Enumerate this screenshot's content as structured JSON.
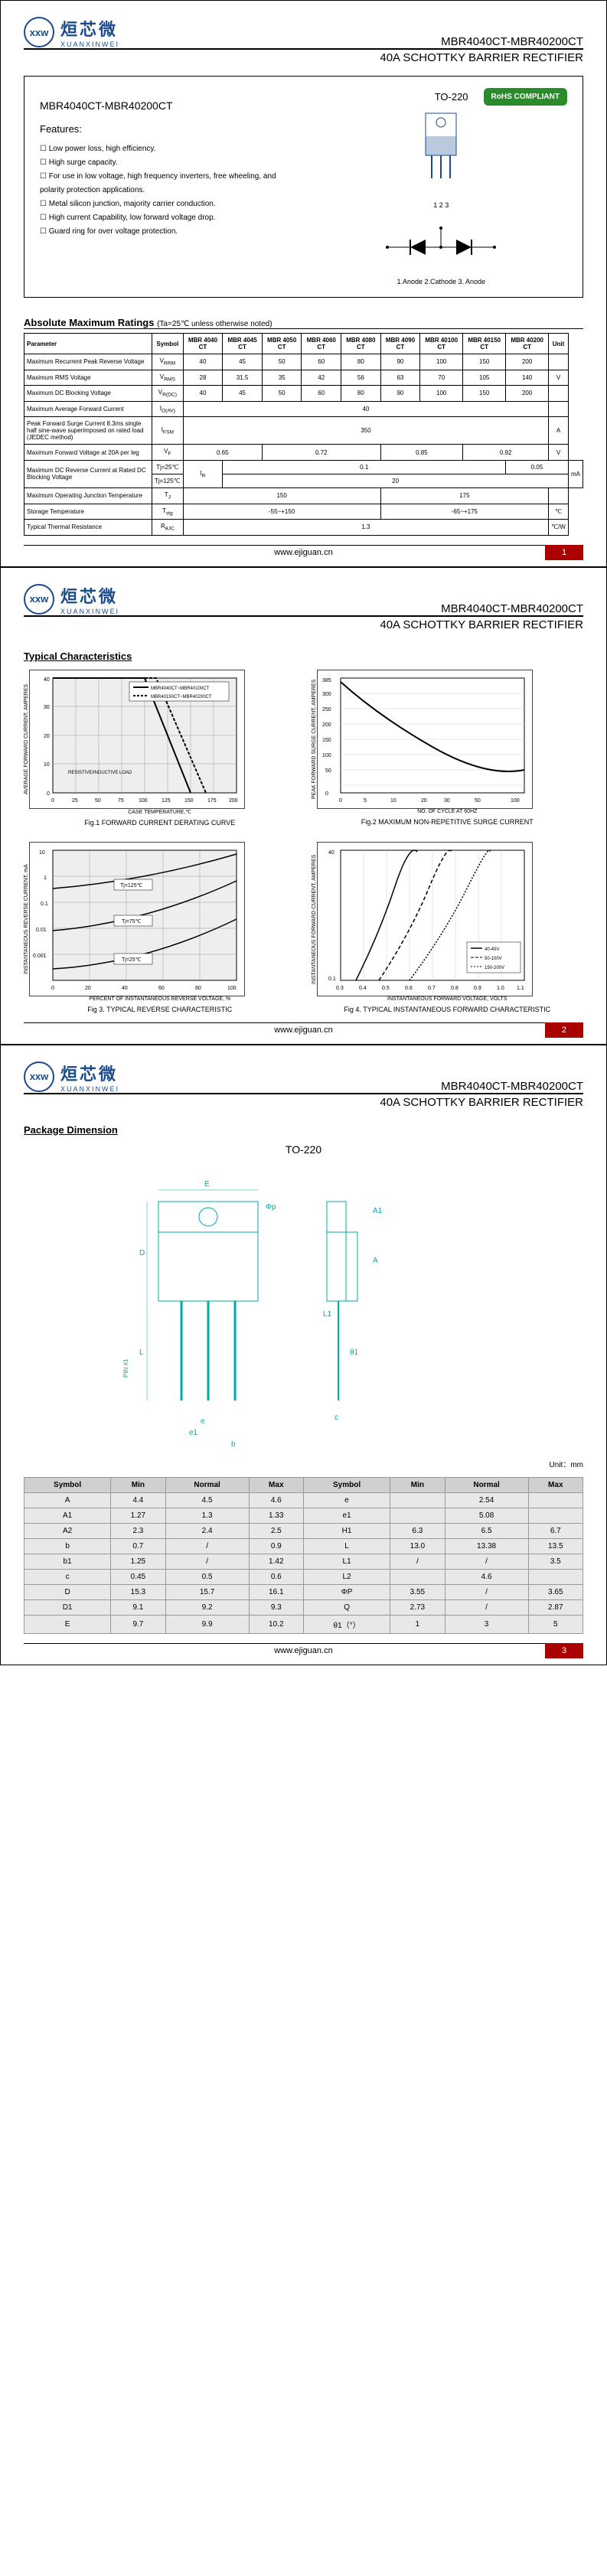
{
  "logo": {
    "circle": "xxw",
    "cn": "烜芯微",
    "en": "XUANXINWEI"
  },
  "header": {
    "part": "MBR4040CT-MBR40200CT",
    "subtitle": "40A SCHOTTKY BARRIER RECTIFIER"
  },
  "feature_box": {
    "part": "MBR4040CT-MBR40200CT",
    "features_title": "Features:",
    "features": [
      "Low power loss, high efficiency.",
      "High surge capacity.",
      "For use in low voltage, high frequency inverters, free wheeling, and polarity protection applications.",
      "Metal silicon junction, majority carrier conduction.",
      "High current Capability, low forward voltage drop.",
      "Guard ring for over voltage protection."
    ],
    "pkg_label": "TO-220",
    "rohs": "RoHS COMPLIANT",
    "pins": "1 2 3",
    "pin_names": "1.Anode  2.Cathode  3. Anode"
  },
  "ratings_section": {
    "title": "Absolute Maximum Ratings",
    "note": "(Ta=25℃ unless otherwise noted)",
    "headers": [
      "Parameter",
      "Symbol",
      "MBR 4040 CT",
      "MBR 4045 CT",
      "MBR 4050 CT",
      "MBR 4060 CT",
      "MBR 4080 CT",
      "MBR 4090 CT",
      "MBR 40100 CT",
      "MBR 40150 CT",
      "MBR 40200 CT",
      "Unit"
    ],
    "rows": [
      {
        "param": "Maximum Recurrent Peak Reverse Voltage",
        "sym": "V<sub>RRM</sub>",
        "vals": [
          "40",
          "45",
          "50",
          "60",
          "80",
          "90",
          "100",
          "150",
          "200"
        ],
        "unit": ""
      },
      {
        "param": "Maximum RMS Voltage",
        "sym": "V<sub>RMS</sub>",
        "vals": [
          "28",
          "31.5",
          "35",
          "42",
          "56",
          "63",
          "70",
          "105",
          "140"
        ],
        "unit": "V"
      },
      {
        "param": "Maximum DC Blocking Voltage",
        "sym": "V<sub>R(DC)</sub>",
        "vals": [
          "40",
          "45",
          "50",
          "60",
          "80",
          "90",
          "100",
          "150",
          "200"
        ],
        "unit": ""
      },
      {
        "param": "Maximum Average Forward Current",
        "sym": "I<sub>O(AV)</sub>",
        "span": "40",
        "unit": ""
      },
      {
        "param": "Peak Forward Surge Current 8.3ms single half sine-wave superimposed on rated load (JEDEC method)",
        "sym": "I<sub>FSM</sub>",
        "span": "350",
        "unit": "A"
      },
      {
        "param": "Maximum Forward Voltage at 20A per leg",
        "sym": "V<sub>F</sub>",
        "groups": [
          [
            "0.65",
            2
          ],
          [
            "0.72",
            3
          ],
          [
            "0.85",
            2
          ],
          [
            "0.92",
            2
          ]
        ],
        "unit": "V"
      },
      {
        "param": "Maximum DC Reverse Current at Rated DC Blocking Voltage",
        "sym": "I<sub>R</sub>",
        "subrows": [
          {
            "cond": "Tj=25℃",
            "groups": [
              [
                "0.1",
                7
              ],
              [
                "0.05",
                2
              ]
            ]
          },
          {
            "cond": "Tj=125℃",
            "span": "20"
          }
        ],
        "unit": "mA"
      },
      {
        "param": "Maximum Operating Junction Temperature",
        "sym": "T<sub>J</sub>",
        "groups": [
          [
            "150",
            5
          ],
          [
            "175",
            4
          ]
        ],
        "unit": ""
      },
      {
        "param": "Storage Temperature",
        "sym": "T<sub>stg</sub>",
        "groups": [
          [
            "-55~+150",
            5
          ],
          [
            "-65~+175",
            4
          ]
        ],
        "unit": "℃"
      },
      {
        "param": "Typical Thermal Resistance",
        "sym": "R<sub>θJC</sub>",
        "span": "1.3",
        "unit": "℃/W"
      }
    ]
  },
  "footer_url": "www.ejiguan.cn",
  "page2": {
    "section": "Typical Characteristics",
    "fig1": {
      "title": "Fig.1 FORWARD CURRENT DERATING CURVE",
      "xlabel": "CASE TEMPERATURE,℃",
      "ylabel": "AVERAGE FORWARD CURRENT, AMPERES",
      "xticks": [
        0,
        25,
        50,
        75,
        100,
        125,
        150,
        175,
        200
      ],
      "yticks": [
        0,
        10,
        20,
        30,
        40
      ],
      "legend": [
        "MBR4040CT~MBR40100CT",
        "MBR40150CT~MBR40200CT"
      ],
      "note": "RESISTIVE/INDUCTIVE LOAD"
    },
    "fig2": {
      "title": "Fig.2 MAXIMUM NON-REPETITIVE SURGE CURRENT",
      "xlabel": "NO. OF CYCLE AT 60HZ",
      "ylabel": "PEAK FORWARD SURGE CURRENT, AMPERES",
      "xticks": [
        0,
        5,
        10,
        20,
        30,
        50,
        100
      ],
      "yticks": [
        0,
        50,
        100,
        150,
        200,
        250,
        300,
        350,
        385
      ]
    },
    "fig3": {
      "title": "Fig 3. TYPICAL REVERSE CHARACTERISTIC",
      "xlabel": "PERCENT OF INSTANTANEOUS REVERSE VOLTAGE, %",
      "ylabel": "INSTANTANEOUS REVERSE CURRENT, mA",
      "xticks": [
        0,
        20,
        40,
        60,
        80,
        100
      ],
      "legend": [
        "Tj=125℃",
        "Tj=75℃",
        "Tj=25℃"
      ]
    },
    "fig4": {
      "title": "Fig 4. TYPICAL INSTANTANEOUS FORWARD CHARACTERISTIC",
      "xlabel": "INSTANTANEOUS FORWARD VOLTAGE, VOLTS",
      "ylabel": "INSTANTANEOUS FORWARD CURRENT, AMPERES",
      "xticks": [
        0.3,
        0.4,
        0.5,
        0.6,
        0.7,
        0.8,
        0.9,
        1.0,
        1.1
      ],
      "legend": [
        "40-45V",
        "50-100V",
        "150-200V"
      ]
    }
  },
  "page3": {
    "section": "Package Dimension",
    "pkg": "TO-220",
    "unit_label": "Unit：mm",
    "dim_headers": [
      "Symbol",
      "Min",
      "Normal",
      "Max",
      "Symbol",
      "Min",
      "Normal",
      "Max"
    ],
    "dim_rows": [
      [
        "A",
        "4.4",
        "4.5",
        "4.6",
        "e",
        "",
        "2.54",
        ""
      ],
      [
        "A1",
        "1.27",
        "1.3",
        "1.33",
        "e1",
        "",
        "5.08",
        ""
      ],
      [
        "A2",
        "2.3",
        "2.4",
        "2.5",
        "H1",
        "6.3",
        "6.5",
        "6.7"
      ],
      [
        "b",
        "0.7",
        "/",
        "0.9",
        "L",
        "13.0",
        "13.38",
        "13.5"
      ],
      [
        "b1",
        "1.25",
        "/",
        "1.42",
        "L1",
        "/",
        "/",
        "3.5"
      ],
      [
        "c",
        "0.45",
        "0.5",
        "0.6",
        "L2",
        "",
        "4.6",
        ""
      ],
      [
        "D",
        "15.3",
        "15.7",
        "16.1",
        "ΦP",
        "3.55",
        "/",
        "3.65"
      ],
      [
        "D1",
        "9.1",
        "9.2",
        "9.3",
        "Q",
        "2.73",
        "/",
        "2.87"
      ],
      [
        "E",
        "9.7",
        "9.9",
        "10.2",
        "θ1（°）",
        "1",
        "3",
        "5"
      ]
    ]
  }
}
